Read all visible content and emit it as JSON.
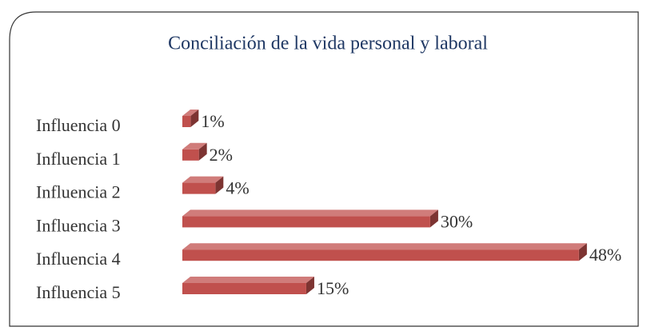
{
  "chart_data": {
    "type": "bar",
    "orientation": "horizontal",
    "title": "Conciliación de la vida personal y laboral",
    "categories": [
      "Influencia 0",
      "Influencia 1",
      "Influencia 2",
      "Influencia 3",
      "Influencia 4",
      "Influencia 5"
    ],
    "values": [
      1,
      2,
      4,
      30,
      48,
      15
    ],
    "value_labels": [
      "1%",
      "2%",
      "4%",
      "30%",
      "48%",
      "15%"
    ],
    "color": "#c0504d"
  }
}
